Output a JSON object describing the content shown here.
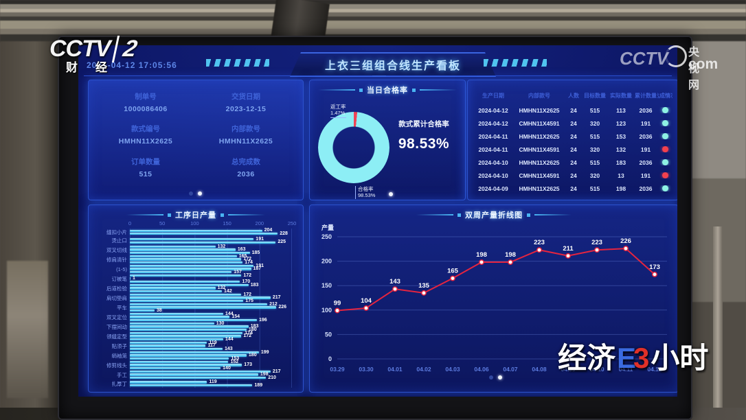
{
  "tv": {
    "channel_logo": "CCTV",
    "channel_number": "2",
    "channel_caption": "财经",
    "network": {
      "name": "央视网",
      "brand": "CCTV",
      "domain": "com"
    },
    "program_logo": {
      "part1": "经济",
      "half_blue": "E",
      "half_red": "3",
      "part3": "小时"
    }
  },
  "dashboard": {
    "datetime": "2024-04-12  17:05:56",
    "title": "上衣三组组合线生产看板",
    "order_info": {
      "fields": [
        {
          "label": "制单号",
          "value": "1000086406"
        },
        {
          "label": "交货日期",
          "value": "2023-12-15"
        },
        {
          "label": "款式编号",
          "value": "HMHN11X2625"
        },
        {
          "label": "内部款号",
          "value": "HMHN11X2625"
        },
        {
          "label": "订单数量",
          "value": "515"
        },
        {
          "label": "总完成数",
          "value": "2036"
        }
      ]
    },
    "pass_rate_panel": {
      "title": "当日合格率",
      "rework_label": "返工率",
      "rework_value": "1.47%",
      "pass_label": "合格率",
      "pass_value": "98.53%",
      "cumulative_label": "款式累计合格率",
      "cumulative_value": "98.53%",
      "donut_colors": {
        "pass": "#8deef5",
        "rework": "#ef4456"
      }
    },
    "production_table": {
      "headers": [
        "生产日期",
        "内部款号",
        "人数",
        "目标数量",
        "实际数量",
        "累计数量",
        "达成情况"
      ],
      "rows": [
        {
          "date": "2024-04-12",
          "style": "HMHN11X2625",
          "people": "24",
          "target": "515",
          "actual": "113",
          "total": "2036",
          "status": "ok"
        },
        {
          "date": "2024-04-12",
          "style": "CMHN11X4591",
          "people": "24",
          "target": "320",
          "actual": "123",
          "total": "191",
          "status": "ok"
        },
        {
          "date": "2024-04-11",
          "style": "HMHN11X2625",
          "people": "24",
          "target": "515",
          "actual": "153",
          "total": "2036",
          "status": "ok"
        },
        {
          "date": "2024-04-11",
          "style": "CMHN11X4591",
          "people": "24",
          "target": "320",
          "actual": "132",
          "total": "191",
          "status": "fail"
        },
        {
          "date": "2024-04-10",
          "style": "HMHN11X2625",
          "people": "24",
          "target": "515",
          "actual": "183",
          "total": "2036",
          "status": "ok"
        },
        {
          "date": "2024-04-10",
          "style": "CMHN11X4591",
          "people": "24",
          "target": "320",
          "actual": "13",
          "total": "191",
          "status": "fail"
        },
        {
          "date": "2024-04-09",
          "style": "HMHN11X2625",
          "people": "24",
          "target": "515",
          "actual": "198",
          "total": "2036",
          "status": "ok"
        }
      ],
      "status_colors": {
        "ok": "#8ef2e4",
        "fail": "#f2414e"
      }
    }
  },
  "chart_data": [
    {
      "type": "bar",
      "orientation": "horizontal",
      "title": "工序日产量",
      "xlim": [
        0,
        250
      ],
      "xticks": [
        0,
        50,
        100,
        150,
        200,
        250
      ],
      "grid": true,
      "bar_color": "#4fd0f5",
      "groups": [
        {
          "label": "缝扣小片",
          "values": [
            204,
            228
          ]
        },
        {
          "label": "烫止口",
          "values": [
            191,
            225
          ]
        },
        {
          "label": "双叉切线",
          "values": [
            132,
            163,
            185
          ]
        },
        {
          "label": "修肩清针",
          "values": [
            165,
            172,
            174
          ]
        },
        {
          "label": "(1-5)",
          "values": [
            191,
            187,
            157
          ]
        },
        {
          "label": "订被笔",
          "values": [
            172,
            1,
            170
          ]
        },
        {
          "label": "后道检验",
          "values": [
            183,
            132,
            142
          ]
        },
        {
          "label": "肩切垫肩",
          "values": [
            172,
            217,
            175
          ]
        },
        {
          "label": "平车",
          "values": [
            212,
            226,
            38
          ]
        },
        {
          "label": "双叉定位",
          "values": [
            144,
            154,
            196
          ]
        },
        {
          "label": "下摆间动",
          "values": [
            130,
            183,
            180
          ]
        },
        {
          "label": "领缝定型",
          "values": [
            174,
            172,
            144
          ]
        },
        {
          "label": "贴须子",
          "values": [
            119,
            117,
            143
          ]
        },
        {
          "label": "绱袖笼",
          "values": [
            199,
            180,
            153
          ]
        },
        {
          "label": "修剪线头",
          "values": [
            152,
            173,
            140
          ]
        },
        {
          "label": "手工",
          "values": [
            217,
            198,
            210
          ]
        },
        {
          "label": "扎厚丁",
          "values": [
            119,
            189
          ]
        }
      ]
    },
    {
      "type": "line",
      "title": "双周产量折线图",
      "ylabel": "产量",
      "ylim": [
        0,
        250
      ],
      "yticks": [
        0,
        50,
        100,
        150,
        200,
        250
      ],
      "grid": true,
      "line_color": "#e5243f",
      "point_color": "#ffffff",
      "categories": [
        "03.29",
        "03.30",
        "04.01",
        "04.02",
        "04.03",
        "04.06",
        "04.07",
        "04.08",
        "04.09",
        "04.10",
        "04.11",
        "04.12"
      ],
      "values": [
        99,
        104,
        143,
        135,
        165,
        198,
        198,
        223,
        211,
        223,
        226,
        173
      ]
    }
  ]
}
